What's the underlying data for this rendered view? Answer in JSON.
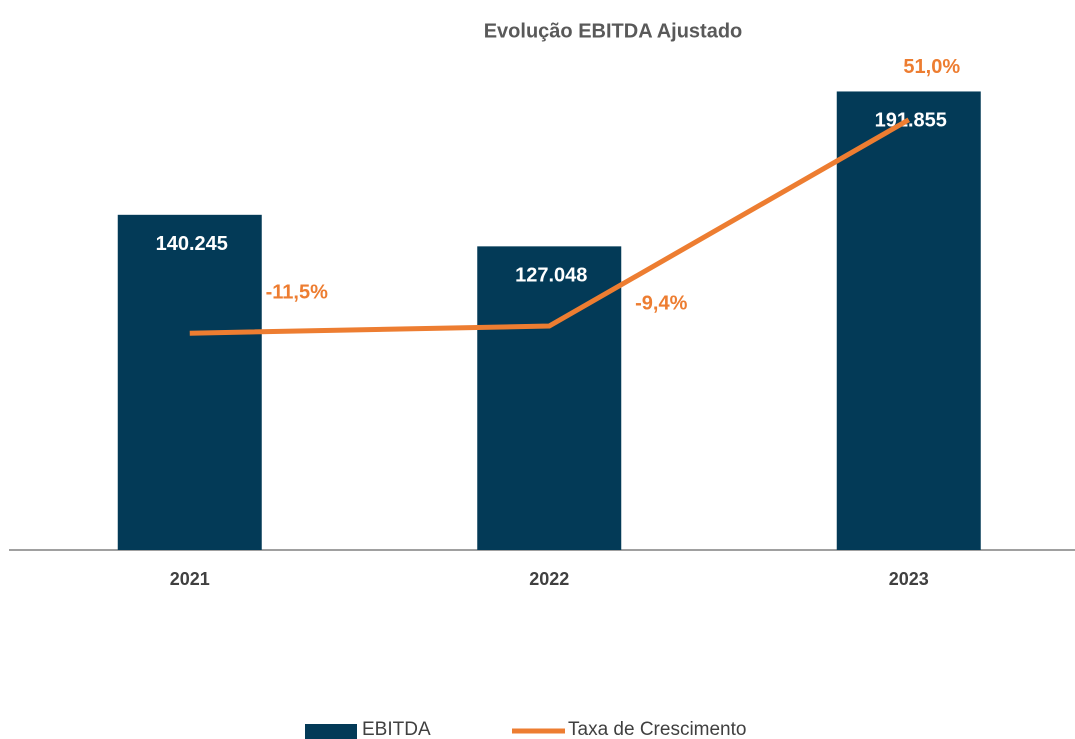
{
  "chart_data": {
    "type": "bar-line",
    "title": "Evolução EBITDA Ajustado",
    "categories": [
      "2021",
      "2022",
      "2023"
    ],
    "series": [
      {
        "name": "EBITDA",
        "type": "bar",
        "color": "#033a57",
        "values": [
          140245,
          127048,
          191855
        ],
        "value_labels": [
          "140.245",
          "127.048",
          "191.855"
        ]
      },
      {
        "name": "Taxa de Crescimento",
        "type": "line",
        "axis": "y2",
        "color": "#ed7d31",
        "values": [
          -11.5,
          -9.4,
          51.0
        ],
        "value_labels": [
          "-11,5%",
          "-9,4%",
          "51,0%"
        ]
      }
    ],
    "ylim": [
      0,
      200000
    ],
    "y2lim": [
      -75,
      65
    ],
    "grid": false,
    "legend": "bottom"
  }
}
